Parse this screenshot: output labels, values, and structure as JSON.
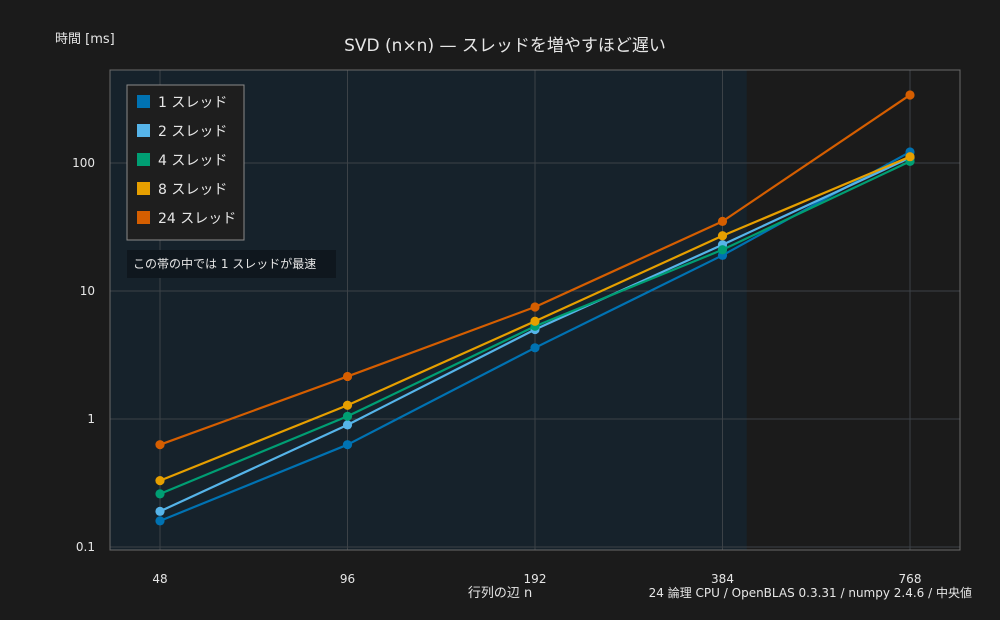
{
  "chart_data": {
    "type": "line",
    "title": "SVD (n×n) — スレッドを増やすほど遅い",
    "ylabel": "時間 [ms]",
    "xlabel": "行列の辺 n",
    "x_scale": "log2",
    "y_scale": "log10",
    "ylim": [
      0.1,
      500
    ],
    "categories": [
      "48",
      "96",
      "192",
      "384",
      "768"
    ],
    "x": [
      48,
      96,
      192,
      384,
      768
    ],
    "y_ticks": [
      {
        "value": 0.1,
        "label": "0.1"
      },
      {
        "value": 1,
        "label": "1"
      },
      {
        "value": 10,
        "label": "10"
      },
      {
        "value": 100,
        "label": "100"
      }
    ],
    "grid": true,
    "legend_position": "top-left",
    "series": [
      {
        "name": "1 スレッド",
        "color": "#0072b2",
        "values": [
          0.16,
          0.63,
          3.6,
          19,
          122
        ]
      },
      {
        "name": "2 スレッド",
        "color": "#56b4e9",
        "values": [
          0.19,
          0.9,
          5.0,
          23,
          110
        ]
      },
      {
        "name": "4 スレッド",
        "color": "#009e73",
        "values": [
          0.26,
          1.05,
          5.3,
          21,
          103
        ]
      },
      {
        "name": "8 スレッド",
        "color": "#e69f00",
        "values": [
          0.33,
          1.28,
          5.8,
          27,
          112
        ]
      },
      {
        "name": "24 スレッド",
        "color": "#d55e00",
        "values": [
          0.63,
          2.15,
          7.5,
          35,
          340
        ]
      }
    ],
    "band": {
      "x_from": 48,
      "x_to": 420,
      "label": "この帯の中では 1 スレッドが最速",
      "color": "#16222b"
    },
    "footnote": "24 論理 CPU / OpenBLAS 0.3.31 / numpy 2.4.6 / 中央値"
  }
}
